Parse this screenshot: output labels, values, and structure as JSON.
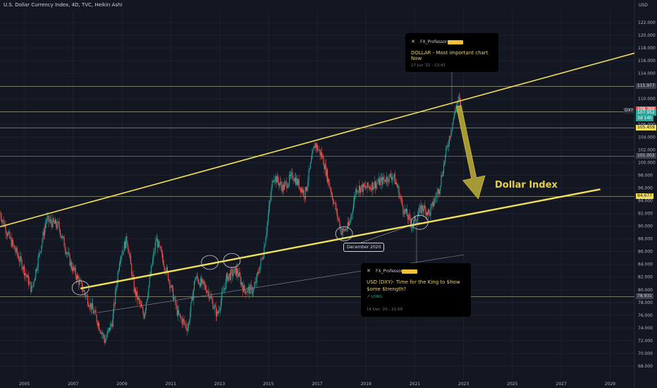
{
  "header": {
    "title": "U.S. Dollar Currency Index, 4D, TVC, Heikin Ashi"
  },
  "colors": {
    "background": "#131722",
    "grid": "#1e2230",
    "up": "#26a69a",
    "down": "#ef5350",
    "channel": "#f2df57",
    "hline": "#d6d6a8",
    "annotation": "#e6d246"
  },
  "ideas": [
    {
      "user": "FX_Professor",
      "title": "DOLLAR - Most important chart Now",
      "timestamp": "17 Jun '22 - 13:41",
      "type": ""
    },
    {
      "user": "FX_Professor",
      "title": "USD (DXY)- Time for the King to $how $ome $trength?",
      "timestamp": "16 Dec '20 - 21:09",
      "type": "LONG"
    }
  ],
  "annotations": {
    "dollar_index": "Dollar Index",
    "december_2020": "December 2020"
  },
  "price_tags": [
    {
      "label": "111.977",
      "value": 111.977,
      "bg": "#3a3f4b",
      "fg": "#d1d4dc"
    },
    {
      "label": "108.368",
      "value": 108.368,
      "bg": "#ef5350",
      "fg": "#ffffff"
    },
    {
      "label": "107.952",
      "value": 107.8,
      "bg": "#26a69a",
      "fg": "#ffffff"
    },
    {
      "label": "3d 14h",
      "value": 106.95,
      "bg": "#26a69a",
      "fg": "#ffffff"
    },
    {
      "label": "105.459",
      "value": 105.459,
      "bg": "#f2df57",
      "fg": "#131722"
    },
    {
      "label": "101.002",
      "value": 101.0,
      "bg": "#3a3f4b",
      "fg": "#d1d4dc"
    },
    {
      "label": "94.677",
      "value": 94.677,
      "bg": "#f2df57",
      "fg": "#131722"
    },
    {
      "label": "78.931",
      "value": 78.931,
      "bg": "#3a3f4b",
      "fg": "#d1d4dc"
    }
  ],
  "dxy_label": "DXY",
  "chart_data": {
    "type": "candlestick",
    "title": "U.S. Dollar Currency Index, 4D, TVC, Heikin Ashi",
    "ylabel": "USD",
    "ylim": [
      66,
      124
    ],
    "xlim": [
      2004.0,
      2030.0
    ],
    "y_ticks": [
      68,
      70,
      72,
      74,
      76,
      78,
      80,
      82,
      84,
      86,
      88,
      90,
      92,
      94,
      96,
      98,
      100,
      102,
      104,
      106,
      108,
      110,
      112,
      114,
      116,
      118,
      120,
      122
    ],
    "y_tick_labels": [
      "68.000",
      "70.000",
      "72.000",
      "74.000",
      "76.000",
      "78.000",
      "80.000",
      "82.000",
      "84.000",
      "86.000",
      "88.000",
      "90.000",
      "92.000",
      "94.000",
      "96.000",
      "98.000",
      "100.000",
      "102.000",
      "104.000",
      "106.000",
      "108.000",
      "110.000",
      "112.000",
      "114.000",
      "116.000",
      "118.000",
      "120.000",
      "122.000"
    ],
    "x_ticks": [
      2005,
      2007,
      2009,
      2011,
      2013,
      2015,
      2017,
      2019,
      2021,
      2023,
      2025,
      2027,
      2029
    ],
    "x_tick_labels": [
      "2005",
      "2007",
      "2009",
      "2011",
      "2013",
      "2015",
      "2017",
      "2019",
      "2021",
      "2023",
      "2025",
      "2027",
      "2029"
    ],
    "price_path": {
      "x": [
        2004.0,
        2004.4,
        2004.9,
        2005.3,
        2005.9,
        2006.4,
        2006.9,
        2007.4,
        2007.9,
        2008.3,
        2008.6,
        2008.9,
        2009.2,
        2009.5,
        2009.9,
        2010.4,
        2010.9,
        2011.3,
        2011.7,
        2012.0,
        2012.5,
        2012.9,
        2013.3,
        2013.7,
        2014.0,
        2014.4,
        2014.8,
        2015.2,
        2015.6,
        2016.0,
        2016.5,
        2016.9,
        2017.2,
        2017.6,
        2018.0,
        2018.3,
        2018.6,
        2019.0,
        2019.6,
        2020.1,
        2020.3,
        2020.5,
        2020.9,
        2021.0,
        2021.3,
        2021.6,
        2022.0,
        2022.3,
        2022.7,
        2022.8,
        2022.9
      ],
      "y": [
        92,
        88,
        84,
        80,
        91,
        90,
        84,
        80,
        76,
        72,
        75,
        85,
        88,
        80,
        76,
        88,
        82,
        76,
        74,
        82,
        80,
        76,
        82,
        83,
        80,
        80,
        86,
        98,
        96,
        98,
        95,
        103,
        101,
        95,
        89,
        90,
        96,
        96,
        97,
        98,
        96,
        93,
        90,
        91,
        93,
        92,
        96,
        102,
        109,
        110,
        108
      ]
    },
    "channel_upper": {
      "x": [
        2004.0,
        2030.0
      ],
      "y": [
        89.9,
        117.2
      ]
    },
    "channel_lower": {
      "x": [
        2007.3,
        2028.6
      ],
      "y": [
        80.2,
        95.8
      ]
    },
    "ray": {
      "x": [
        2008.0,
        2023.0
      ],
      "y": [
        76.4,
        85.5
      ]
    },
    "horizontal_lines": [
      111.977,
      107.952,
      105.459,
      101.002,
      94.677,
      78.931
    ],
    "circles": [
      {
        "x": 2007.3,
        "y": 80.3
      },
      {
        "x": 2012.6,
        "y": 84.3
      },
      {
        "x": 2013.5,
        "y": 84.6
      },
      {
        "x": 2018.1,
        "y": 88.8
      },
      {
        "x": 2021.2,
        "y": 90.6
      }
    ],
    "arrow": {
      "from": {
        "x": 2022.8,
        "y": 108.9
      },
      "to": {
        "x": 2023.6,
        "y": 94.3
      }
    }
  }
}
